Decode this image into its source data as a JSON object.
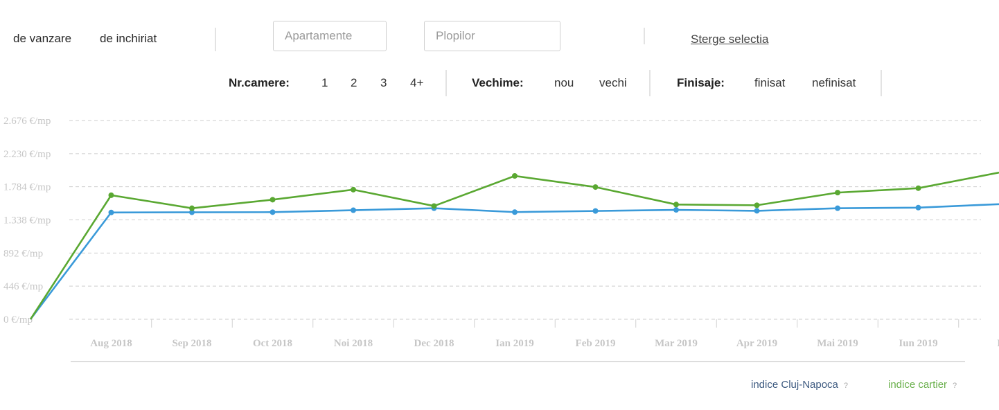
{
  "top_bar": {
    "sale_label": "de vanzare",
    "rent_label": "de inchiriat",
    "property_type_value": "Apartamente",
    "area_value": "Plopilor",
    "clear_label": "Sterge selectia"
  },
  "filters": {
    "rooms_label": "Nr.camere:",
    "rooms_options": [
      "1",
      "2",
      "3",
      "4+"
    ],
    "age_label": "Vechime:",
    "age_options": [
      "nou",
      "vechi"
    ],
    "finish_label": "Finisaje:",
    "finish_options": [
      "finisat",
      "nefinisat"
    ]
  },
  "legend": {
    "city_label": "indice Cluj-Napoca",
    "district_label": "indice cartier",
    "help_mark": "?"
  },
  "colors": {
    "city": "#3a9ad9",
    "district": "#5aa832",
    "grid": "#cccccc",
    "tick_text": "#c6c6c6",
    "city_legend_text": "#3d5a80",
    "district_legend_text": "#6ab04c"
  },
  "chart_data": {
    "type": "line",
    "categories": [
      "",
      "Aug 2018",
      "Sep 2018",
      "Oct 2018",
      "Noi 2018",
      "Dec 2018",
      "Ian 2019",
      "Feb 2019",
      "Mar 2019",
      "Apr 2019",
      "Mai 2019",
      "Iun 2019",
      "I"
    ],
    "y_ticks": [
      "0 €/mp",
      "446 €/mp",
      "892 €/mp",
      "1.338 €/mp",
      "1.784 €/mp",
      "2.230 €/mp",
      "2.676 €/mp"
    ],
    "ylim": [
      0,
      2676
    ],
    "grid": true,
    "legend_position": "bottom-right",
    "series": [
      {
        "name": "indice Cluj-Napoca",
        "color_key": "city",
        "values": [
          0,
          1438,
          1440,
          1442,
          1468,
          1495,
          1443,
          1458,
          1473,
          1460,
          1495,
          1503,
          1550
        ]
      },
      {
        "name": "indice cartier",
        "color_key": "district",
        "values": [
          0,
          1670,
          1495,
          1610,
          1745,
          1525,
          1930,
          1780,
          1545,
          1535,
          1705,
          1765,
          1975
        ]
      }
    ]
  }
}
